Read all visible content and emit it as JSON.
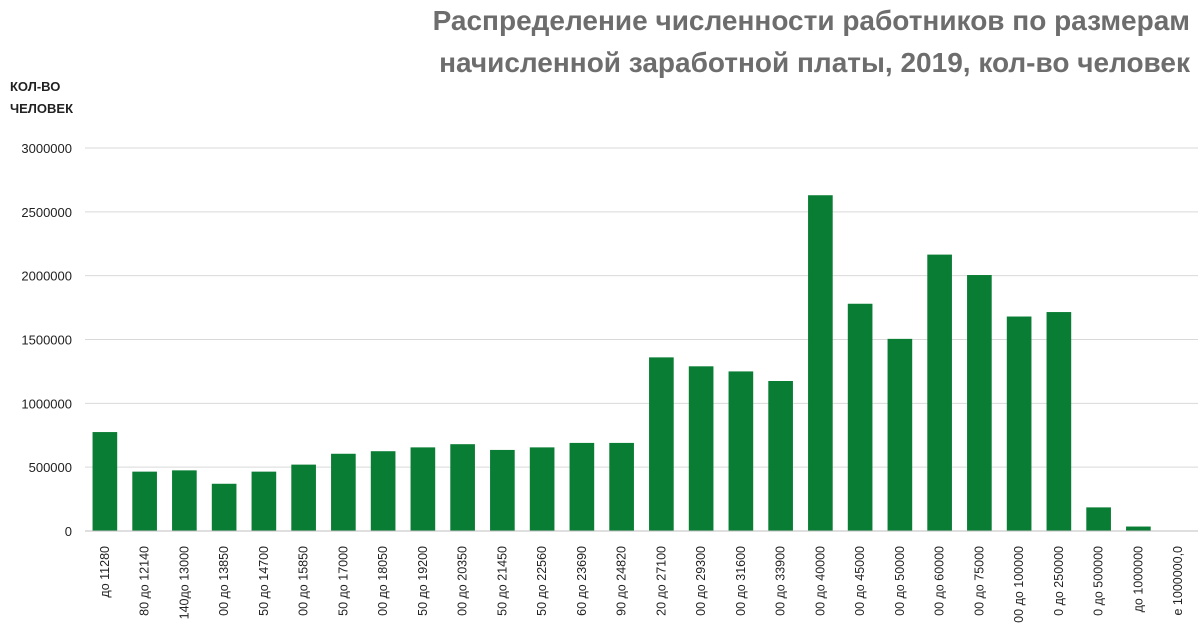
{
  "chart_data": {
    "type": "bar",
    "title_lines": [
      "Распределение численности работников по размерам",
      "начисленной заработной платы, 2019, кол-во человек"
    ],
    "ylabel_lines": [
      "КОЛ-ВО",
      "ЧЕЛОВЕК"
    ],
    "xlabel": "",
    "ylim": [
      0,
      3000000
    ],
    "yticks": [
      0,
      500000,
      1000000,
      1500000,
      2000000,
      2500000,
      3000000
    ],
    "yticks_text": [
      "0",
      "500000",
      "1000000",
      "1500000",
      "2000000",
      "2500000",
      "3000000"
    ],
    "grid": true,
    "bar_color": "#0a7d34",
    "categories": [
      "до 11280",
      "80 до 12140",
      "140до 13000",
      "00 до 13850",
      "50 до 14700",
      "00 до 15850",
      "50 до 17000",
      "00 до 18050",
      "50 до 19200",
      "00 до 20350",
      "50 до 21450",
      "50 до 22560",
      "60 до 23690",
      "90 до 24820",
      "20 до 27100",
      "00 до 29300",
      "00 до 31600",
      "00 до 33900",
      "00 до 40000",
      "00 до 45000",
      "00 до 50000",
      "00 до 60000",
      "00 до 75000",
      "00 до 100000",
      "0 до 250000",
      "0 до 500000",
      "до 1000000",
      "е 1000000,0"
    ],
    "values": [
      775000,
      465000,
      475000,
      370000,
      465000,
      520000,
      605000,
      625000,
      655000,
      680000,
      635000,
      655000,
      690000,
      690000,
      1360000,
      1290000,
      1250000,
      1175000,
      2630000,
      1780000,
      1505000,
      2165000,
      2005000,
      1680000,
      1715000,
      185000,
      35000,
      0
    ]
  }
}
